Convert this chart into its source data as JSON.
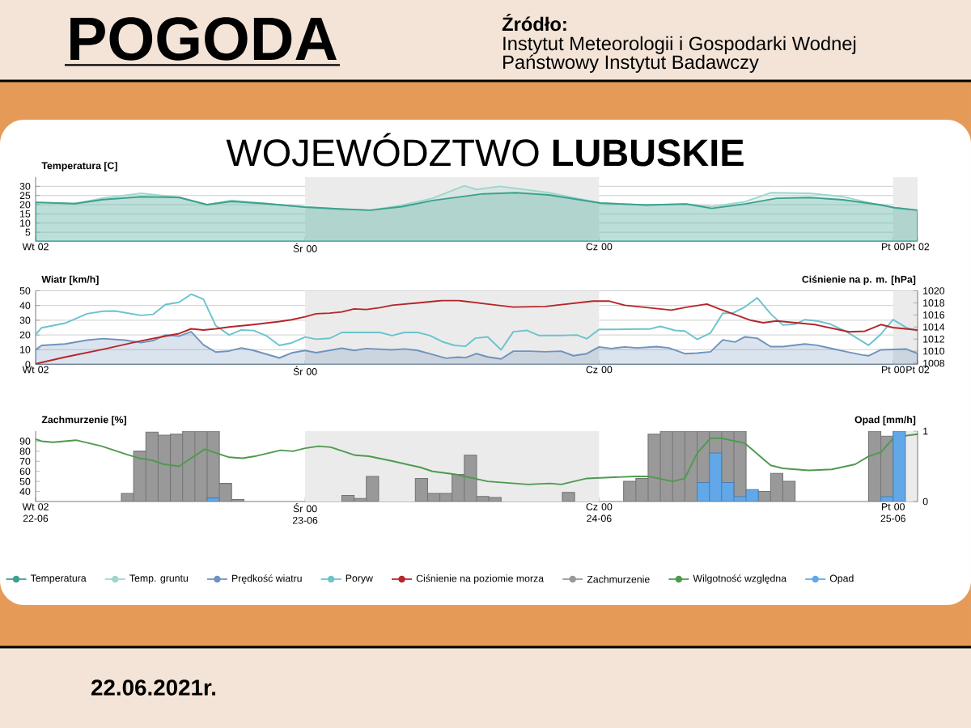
{
  "chart_data": [
    {
      "type": "area",
      "title": "WOJEWÓDZTWO **LUBUSKIE**",
      "annotations": [
        "POGODA",
        "Źródło:",
        "Instytut Meteorologii i Gospodarki Wodnej",
        "Państwowy Instytut Badawczy",
        "22.06.2021r."
      ],
      "ylabel": "Temperatura [C]",
      "xlim": [
        "2021-06-22T02:00",
        "2021-06-25T02:00"
      ],
      "xticks": [
        {
          "value": "2021-06-22T02:00",
          "label": "Wt 02"
        },
        {
          "value": "2021-06-23T00:00",
          "label": "Śr 00"
        },
        {
          "value": "2021-06-24T00:00",
          "label": "Cz 00"
        },
        {
          "value": "2021-06-25T00:00",
          "label": "Pt 00"
        },
        {
          "value": "2021-06-25T02:00",
          "label": "Pt 02"
        }
      ],
      "ylim": [
        0,
        35
      ],
      "yticks": [
        5,
        10,
        15,
        20,
        25,
        30
      ],
      "grid": "y",
      "line_style": "solid",
      "legend": "bottom",
      "bands": [
        {
          "axis": "x",
          "from": "2021-06-23T00:00",
          "to": "2021-06-24T00:00",
          "color": "#ebebeb"
        },
        {
          "axis": "x",
          "from": "2021-06-25T00:00",
          "to": "2021-06-25T02:00",
          "color": "#ebebeb"
        }
      ],
      "series": [
        {
          "name": "Temperatura",
          "color": "#3ba18e",
          "x": [
            "2021-06-22T02:00",
            "2021-06-22T05:12",
            "2021-06-22T07:30",
            "2021-06-22T10:36",
            "2021-06-22T13:42",
            "2021-06-22T16:00",
            "2021-06-22T18:00",
            "2021-06-22T20:48",
            "2021-06-23T00:00",
            "2021-06-23T02:42",
            "2021-06-23T05:18",
            "2021-06-23T07:54",
            "2021-06-23T10:24",
            "2021-06-23T14:30",
            "2021-06-23T17:12",
            "2021-06-23T19:54",
            "2021-06-24T00:06",
            "2021-06-24T03:54",
            "2021-06-24T07:06",
            "2021-06-24T09:12",
            "2021-06-24T11:54",
            "2021-06-24T14:30",
            "2021-06-24T17:12",
            "2021-06-24T19:54",
            "2021-06-24T23:06",
            "2021-06-25T00:06",
            "2021-06-25T02:00"
          ],
          "values": [
            21.3,
            20.6,
            22.8,
            24.3,
            24,
            20,
            21.8,
            20.6,
            18.7,
            17.7,
            17,
            18.9,
            22.3,
            25.9,
            26.5,
            25.3,
            20.9,
            19.8,
            20.4,
            18,
            20.4,
            23.5,
            23.9,
            22.7,
            19.8,
            18.4,
            17
          ]
        },
        {
          "name": "Temp. gruntu",
          "color": "#9fd6cc",
          "x": [
            "2021-06-22T02:00",
            "2021-06-22T05:12",
            "2021-06-22T07:30",
            "2021-06-22T10:36",
            "2021-06-22T13:42",
            "2021-06-22T16:00",
            "2021-06-22T18:00",
            "2021-06-22T20:48",
            "2021-06-23T00:00",
            "2021-06-23T02:42",
            "2021-06-23T05:18",
            "2021-06-23T07:54",
            "2021-06-23T10:24",
            "2021-06-23T13:00",
            "2021-06-23T14:00",
            "2021-06-23T15:54",
            "2021-06-23T19:54",
            "2021-06-24T00:06",
            "2021-06-24T03:54",
            "2021-06-24T07:06",
            "2021-06-24T09:12",
            "2021-06-24T11:54",
            "2021-06-24T14:00",
            "2021-06-24T17:12",
            "2021-06-24T19:54",
            "2021-06-24T22:30",
            "2021-06-25T00:06",
            "2021-06-25T02:00"
          ],
          "values": [
            21.3,
            20.6,
            23.6,
            26.2,
            24,
            20,
            22.4,
            20.6,
            18.7,
            17.7,
            17,
            19.7,
            23.5,
            30.3,
            28.3,
            30,
            26.5,
            20.9,
            19.8,
            20.4,
            18.9,
            21.6,
            26.5,
            26.2,
            24.4,
            20.4,
            18.4,
            17
          ]
        }
      ]
    },
    {
      "type": "line",
      "ylabel": "Wiatr [km/h]",
      "y2label": "Ciśnienie na p. m. [hPa]",
      "xlim": [
        "2021-06-22T02:00",
        "2021-06-25T02:00"
      ],
      "xticks": [
        {
          "value": "2021-06-22T02:00",
          "label": "Wt 02"
        },
        {
          "value": "2021-06-23T00:00",
          "label": "Śr 00"
        },
        {
          "value": "2021-06-24T00:00",
          "label": "Cz 00"
        },
        {
          "value": "2021-06-25T00:00",
          "label": "Pt 00"
        },
        {
          "value": "2021-06-25T02:00",
          "label": "Pt 02"
        }
      ],
      "ylim": [
        0,
        50
      ],
      "yticks": [
        0,
        10,
        20,
        30,
        40,
        50
      ],
      "y2lim": [
        1007.8,
        1020
      ],
      "y2ticks": [
        1008,
        1010,
        1012,
        1014,
        1016,
        1018,
        1020
      ],
      "grid": "y",
      "line_style": "solid",
      "legend": "bottom",
      "bands": [
        {
          "axis": "x",
          "from": "2021-06-23T00:00",
          "to": "2021-06-24T00:00",
          "color": "#ebebeb"
        },
        {
          "axis": "x",
          "from": "2021-06-25T00:00",
          "to": "2021-06-25T02:00",
          "color": "#ebebeb"
        }
      ],
      "series": [
        {
          "name": "Prędkość wiatru",
          "type": "area",
          "color": "#6f93bd",
          "x": [
            "2021-06-22T02:00",
            "2021-06-22T02:30",
            "2021-06-22T04:24",
            "2021-06-22T06:12",
            "2021-06-22T07:30",
            "2021-06-22T09:18",
            "2021-06-22T10:36",
            "2021-06-22T11:36",
            "2021-06-22T12:36",
            "2021-06-22T13:42",
            "2021-06-22T14:42",
            "2021-06-22T15:42",
            "2021-06-22T16:42",
            "2021-06-22T17:48",
            "2021-06-22T18:48",
            "2021-06-22T19:48",
            "2021-06-22T21:54",
            "2021-06-22T22:54",
            "2021-06-23T00:00",
            "2021-06-23T00:54",
            "2021-06-23T03:00",
            "2021-06-23T04:00",
            "2021-06-23T05:00",
            "2021-06-23T07:06",
            "2021-06-23T08:06",
            "2021-06-23T09:12",
            "2021-06-23T10:12",
            "2021-06-23T11:30",
            "2021-06-23T12:30",
            "2021-06-23T13:06",
            "2021-06-23T14:00",
            "2021-06-23T14:54",
            "2021-06-23T16:00",
            "2021-06-23T17:00",
            "2021-06-23T18:18",
            "2021-06-23T19:36",
            "2021-06-23T20:54",
            "2021-06-23T21:54",
            "2021-06-23T23:00",
            "2021-06-24T00:00",
            "2021-06-24T01:00",
            "2021-06-24T02:06",
            "2021-06-24T03:06",
            "2021-06-24T04:42",
            "2021-06-24T05:42",
            "2021-06-24T07:00",
            "2021-06-24T08:00",
            "2021-06-24T09:06",
            "2021-06-24T10:06",
            "2021-06-24T11:06",
            "2021-06-24T11:54",
            "2021-06-24T12:54",
            "2021-06-24T14:00",
            "2021-06-24T15:00",
            "2021-06-24T16:48",
            "2021-06-24T17:48",
            "2021-06-24T19:06",
            "2021-06-24T20:12",
            "2021-06-24T21:30",
            "2021-06-24T22:00",
            "2021-06-24T23:00",
            "2021-06-25T01:06",
            "2021-06-25T02:00"
          ],
          "values": [
            10.1,
            12.9,
            13.9,
            16.5,
            17.5,
            16.5,
            14.8,
            16.2,
            20,
            19.2,
            22.2,
            13.3,
            8.4,
            9.1,
            11.2,
            9.5,
            4.4,
            7.8,
            9.5,
            8,
            11,
            9.5,
            10.8,
            9.9,
            10.5,
            9.5,
            7.2,
            4.2,
            4.9,
            4.6,
            7.3,
            5.1,
            3.7,
            9,
            9,
            8.6,
            9,
            5.9,
            7.3,
            11.9,
            10.8,
            11.9,
            11.2,
            12.1,
            11.2,
            7.3,
            7.7,
            8.6,
            16.7,
            15.2,
            18.7,
            17.8,
            12.1,
            12.1,
            13.9,
            13,
            10.6,
            8.6,
            6.4,
            5.9,
            9.9,
            10.4,
            7.3
          ]
        },
        {
          "name": "Poryw",
          "type": "line",
          "color": "#6cc3cc",
          "x": [
            "2021-06-22T02:00",
            "2021-06-22T02:30",
            "2021-06-22T04:24",
            "2021-06-22T06:12",
            "2021-06-22T07:30",
            "2021-06-22T08:30",
            "2021-06-22T10:36",
            "2021-06-22T11:36",
            "2021-06-22T12:36",
            "2021-06-22T13:42",
            "2021-06-22T14:42",
            "2021-06-22T15:42",
            "2021-06-22T16:42",
            "2021-06-22T17:48",
            "2021-06-22T18:48",
            "2021-06-22T19:48",
            "2021-06-22T20:48",
            "2021-06-22T21:54",
            "2021-06-22T22:54",
            "2021-06-23T00:00",
            "2021-06-23T00:54",
            "2021-06-23T02:00",
            "2021-06-23T03:00",
            "2021-06-23T06:06",
            "2021-06-23T07:06",
            "2021-06-23T08:06",
            "2021-06-23T09:12",
            "2021-06-23T10:12",
            "2021-06-23T11:12",
            "2021-06-23T12:12",
            "2021-06-23T13:06",
            "2021-06-23T13:54",
            "2021-06-23T14:54",
            "2021-06-23T16:00",
            "2021-06-23T17:00",
            "2021-06-23T18:06",
            "2021-06-23T19:06",
            "2021-06-23T20:54",
            "2021-06-23T22:12",
            "2021-06-23T23:00",
            "2021-06-24T00:00",
            "2021-06-24T01:18",
            "2021-06-24T03:06",
            "2021-06-24T04:06",
            "2021-06-24T05:00",
            "2021-06-24T06:12",
            "2021-06-24T07:00",
            "2021-06-24T08:00",
            "2021-06-24T09:06",
            "2021-06-24T10:06",
            "2021-06-24T10:54",
            "2021-06-24T11:54",
            "2021-06-24T12:54",
            "2021-06-24T14:00",
            "2021-06-24T15:00",
            "2021-06-24T16:00",
            "2021-06-24T16:48",
            "2021-06-24T17:48",
            "2021-06-24T18:54",
            "2021-06-24T20:12",
            "2021-06-24T22:00",
            "2021-06-24T23:00",
            "2021-06-25T00:00",
            "2021-06-25T01:06",
            "2021-06-25T02:00"
          ],
          "values": [
            20.3,
            24.9,
            28,
            34.4,
            36.1,
            36.3,
            33.3,
            34,
            40.7,
            42.2,
            47.7,
            44.3,
            26.4,
            20,
            23.4,
            23,
            19.6,
            12.9,
            14.6,
            18.6,
            17.1,
            17.7,
            21.7,
            21.7,
            19.6,
            21.7,
            21.7,
            19.6,
            15.4,
            12.9,
            12.3,
            17.8,
            18.7,
            9.9,
            22.2,
            23.1,
            19.6,
            19.6,
            20,
            17.4,
            23.8,
            23.8,
            24,
            24,
            25.8,
            23.1,
            22.7,
            17,
            21.4,
            34.8,
            34.8,
            39,
            45.2,
            34.4,
            26.7,
            27.3,
            30.4,
            29.5,
            27.3,
            22.2,
            13,
            20.5,
            30.4,
            24.9,
            22.7
          ]
        },
        {
          "name": "Ciśnienie na poziomie morza",
          "type": "line",
          "axis": "y2",
          "color": "#b5262a",
          "x": [
            "2021-06-22T02:00",
            "2021-06-22T04:24",
            "2021-06-22T07:30",
            "2021-06-22T10:36",
            "2021-06-22T12:36",
            "2021-06-22T13:42",
            "2021-06-22T14:42",
            "2021-06-22T15:42",
            "2021-06-22T16:42",
            "2021-06-22T17:48",
            "2021-06-22T19:48",
            "2021-06-22T21:54",
            "2021-06-22T22:54",
            "2021-06-23T00:00",
            "2021-06-23T00:54",
            "2021-06-23T02:00",
            "2021-06-23T03:00",
            "2021-06-23T04:00",
            "2021-06-23T05:00",
            "2021-06-23T06:06",
            "2021-06-23T07:06",
            "2021-06-23T09:12",
            "2021-06-23T11:12",
            "2021-06-23T12:30",
            "2021-06-23T15:42",
            "2021-06-23T17:00",
            "2021-06-23T19:36",
            "2021-06-23T23:30",
            "2021-06-24T00:48",
            "2021-06-24T02:06",
            "2021-06-24T05:54",
            "2021-06-24T07:12",
            "2021-06-24T08:48",
            "2021-06-24T09:48",
            "2021-06-24T12:24",
            "2021-06-24T13:24",
            "2021-06-24T14:30",
            "2021-06-24T17:36",
            "2021-06-24T20:24",
            "2021-06-24T21:42",
            "2021-06-24T23:00",
            "2021-06-25T00:00",
            "2021-06-25T02:00"
          ],
          "values": [
            1007.9,
            1009,
            1010.3,
            1011.7,
            1012.5,
            1012.9,
            1013.7,
            1013.5,
            1013.7,
            1014,
            1014.4,
            1014.9,
            1015.2,
            1015.7,
            1016.2,
            1016.3,
            1016.5,
            1017,
            1016.9,
            1017.2,
            1017.6,
            1018,
            1018.4,
            1018.4,
            1017.6,
            1017.3,
            1017.4,
            1018.3,
            1018.3,
            1017.6,
            1016.8,
            1017.3,
            1017.8,
            1017,
            1015.1,
            1014.7,
            1015,
            1014.4,
            1013.2,
            1013.3,
            1014.4,
            1013.9,
            1013.5
          ]
        }
      ]
    },
    {
      "type": "bar",
      "ylabel": "Zachmurzenie [%]",
      "y2label": "Opad [mm/h]",
      "xlim": [
        "2021-06-22T02:00",
        "2021-06-25T02:00"
      ],
      "xticks": [
        {
          "value": "2021-06-22T02:00",
          "label": "Wt 02 22-06"
        },
        {
          "value": "2021-06-23T00:00",
          "label": "Śr 00 23-06"
        },
        {
          "value": "2021-06-24T00:00",
          "label": "Cz 00 24-06"
        },
        {
          "value": "2021-06-25T00:00",
          "label": "Pt 00 25-06"
        }
      ],
      "ylim": [
        30,
        100
      ],
      "yticks": [
        40,
        50,
        60,
        70,
        80,
        90
      ],
      "y2lim": [
        0,
        1
      ],
      "y2ticks": [
        0,
        1
      ],
      "line_style": "solid",
      "legend": "bottom",
      "bands": [
        {
          "axis": "x",
          "from": "2021-06-23T00:00",
          "to": "2021-06-24T00:00",
          "color": "#ebebeb"
        },
        {
          "axis": "x",
          "from": "2021-06-25T00:00",
          "to": "2021-06-25T02:00",
          "color": "#ebebeb"
        }
      ],
      "series": [
        {
          "name": "Zachmurzenie",
          "type": "bar",
          "color": "#999999",
          "x": [
            "2021-06-22T09:30",
            "2021-06-22T10:30",
            "2021-06-22T11:30",
            "2021-06-22T12:30",
            "2021-06-22T13:30",
            "2021-06-22T14:30",
            "2021-06-22T15:30",
            "2021-06-22T16:30",
            "2021-06-22T17:30",
            "2021-06-22T18:30",
            "2021-06-23T03:30",
            "2021-06-23T04:30",
            "2021-06-23T05:30",
            "2021-06-23T09:30",
            "2021-06-23T10:30",
            "2021-06-23T11:30",
            "2021-06-23T12:30",
            "2021-06-23T13:30",
            "2021-06-23T14:30",
            "2021-06-23T15:30",
            "2021-06-23T21:30",
            "2021-06-24T02:30",
            "2021-06-24T03:30",
            "2021-06-24T04:30",
            "2021-06-24T05:30",
            "2021-06-24T06:30",
            "2021-06-24T07:30",
            "2021-06-24T08:30",
            "2021-06-24T09:30",
            "2021-06-24T10:30",
            "2021-06-24T11:30",
            "2021-06-24T12:30",
            "2021-06-24T13:30",
            "2021-06-24T14:30",
            "2021-06-24T15:30",
            "2021-06-24T22:30",
            "2021-06-24T23:30"
          ],
          "values": [
            38,
            80,
            99,
            96,
            97,
            100,
            100,
            100,
            48,
            32,
            36,
            33,
            55,
            53,
            38,
            38,
            57,
            76,
            35,
            34,
            39,
            50,
            53,
            97,
            100,
            100,
            100,
            100,
            100,
            100,
            100,
            null,
            40,
            58,
            50,
            100,
            95
          ]
        },
        {
          "name": "Wilgotność względna",
          "type": "line",
          "color": "#4e9a4e",
          "x": [
            "2021-06-22T02:00",
            "2021-06-22T02:30",
            "2021-06-22T03:24",
            "2021-06-22T05:18",
            "2021-06-22T07:24",
            "2021-06-22T09:24",
            "2021-06-22T10:30",
            "2021-06-22T11:30",
            "2021-06-22T12:30",
            "2021-06-22T13:42",
            "2021-06-22T15:48",
            "2021-06-22T17:48",
            "2021-06-22T18:54",
            "2021-06-22T19:54",
            "2021-06-22T22:00",
            "2021-06-22T23:00",
            "2021-06-23T00:00",
            "2021-06-23T01:06",
            "2021-06-23T02:06",
            "2021-06-23T04:06",
            "2021-06-23T05:12",
            "2021-06-23T07:12",
            "2021-06-23T09:24",
            "2021-06-23T10:24",
            "2021-06-23T12:18",
            "2021-06-23T14:54",
            "2021-06-23T18:12",
            "2021-06-23T20:00",
            "2021-06-23T20:54",
            "2021-06-23T23:00",
            "2021-06-24T03:00",
            "2021-06-24T04:00",
            "2021-06-24T06:00",
            "2021-06-24T07:00",
            "2021-06-24T08:00",
            "2021-06-24T09:06",
            "2021-06-24T10:00",
            "2021-06-24T11:54",
            "2021-06-24T14:00",
            "2021-06-24T15:00",
            "2021-06-24T17:06",
            "2021-06-24T19:00",
            "2021-06-24T20:54",
            "2021-06-24T22:00",
            "2021-06-24T23:00",
            "2021-06-25T00:06",
            "2021-06-25T02:00"
          ],
          "values": [
            92,
            90,
            89,
            91,
            85,
            77,
            73,
            71,
            67,
            65,
            82,
            74,
            73,
            75,
            81,
            80,
            83,
            85,
            84,
            76,
            75,
            70,
            64,
            60,
            57,
            50,
            47,
            48,
            47,
            53,
            55,
            55,
            50,
            53,
            78,
            93,
            93,
            88,
            66,
            63,
            61,
            62,
            67,
            75,
            79,
            94,
            97
          ]
        },
        {
          "name": "Opad",
          "type": "bar",
          "axis": "y2",
          "color": "#62a8e8",
          "x": [
            "2021-06-22T16:30",
            "2021-06-24T08:30",
            "2021-06-24T09:30",
            "2021-06-24T10:30",
            "2021-06-24T11:30",
            "2021-06-24T12:30",
            "2021-06-24T23:30",
            "2021-06-25T00:30"
          ],
          "values": [
            0.05,
            0.27,
            0.69,
            0.27,
            0.07,
            0.17,
            0.07,
            1
          ]
        }
      ]
    }
  ]
}
